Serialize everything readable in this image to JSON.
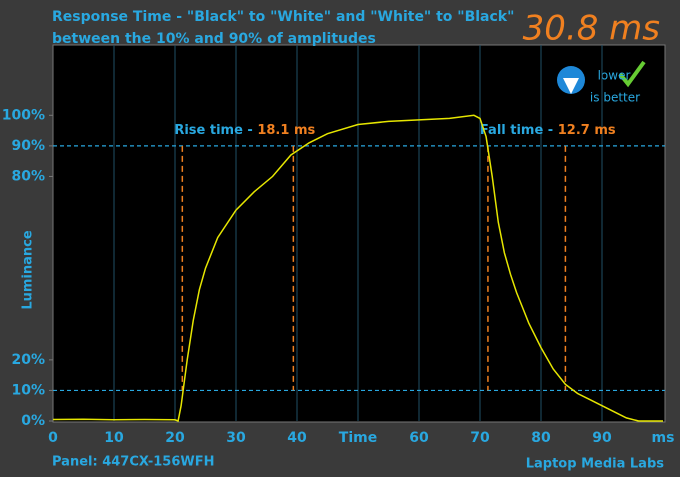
{
  "chart_data": {
    "type": "line",
    "title": "Response Time - \"Black\" to \"White\" and \"White\" to \"Black\"",
    "subtitle": "between the 10% and 90% of amplitudes",
    "result": "30.8 ms",
    "badge": [
      "lower",
      "is better"
    ],
    "ylabel": "Luminance",
    "footer_left": "Panel: 447CX-156WFH",
    "footer_right": "Laptop Media Labs",
    "xlim": [
      0,
      100
    ],
    "ylim": [
      0,
      123
    ],
    "xticks": [
      0,
      10,
      20,
      30,
      40,
      {
        "value": 50,
        "label": "Time"
      },
      60,
      70,
      80,
      90,
      {
        "value": 100,
        "label": "ms"
      }
    ],
    "yticks": [
      {
        "value": 0,
        "label": "0%"
      },
      {
        "value": 10,
        "label": "10%"
      },
      {
        "value": 20,
        "label": "20%"
      },
      {
        "value": 80,
        "label": "80%"
      },
      {
        "value": 90,
        "label": "90%"
      },
      {
        "value": 100,
        "label": "100%"
      }
    ],
    "thresholds": [
      10,
      90
    ],
    "x": [
      0,
      5,
      10,
      15,
      20,
      20.5,
      21,
      22,
      23,
      24,
      25,
      27,
      30,
      33,
      36,
      39,
      42,
      45,
      50,
      55,
      60,
      65,
      69,
      70,
      71,
      72,
      73,
      74,
      75,
      76,
      77,
      78,
      80,
      82,
      84,
      86,
      88,
      90,
      92,
      94,
      96,
      100
    ],
    "series": [
      {
        "color": "#e6e600",
        "values": [
          0.5,
          0.6,
          0.4,
          0.5,
          0.4,
          0,
          5,
          20,
          33,
          43,
          50,
          60,
          69,
          75,
          80,
          87,
          91,
          94,
          97,
          98,
          98.5,
          99,
          100,
          99,
          93,
          80,
          65,
          55,
          48,
          42,
          37,
          32,
          24,
          17,
          12,
          9,
          7,
          5,
          3,
          1,
          0,
          0
        ]
      }
    ],
    "annotations": [
      {
        "label": "Rise time - ",
        "value_text": "18.1 ms",
        "start": 21.2,
        "end": 39.4
      },
      {
        "label": "Fall time - ",
        "value_text": "12.7 ms",
        "start": 71.3,
        "end": 84
      }
    ]
  }
}
